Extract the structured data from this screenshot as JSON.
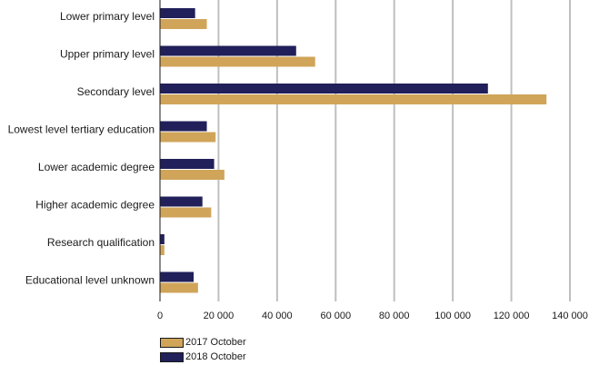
{
  "chart_data": {
    "type": "bar",
    "orientation": "horizontal",
    "categories": [
      "Lower primary level",
      "Upper primary level",
      "Secondary level",
      "Lowest level tertiary education",
      "Lower academic degree",
      "Higher academic degree",
      "Research qualification",
      "Educational level unknown"
    ],
    "series": [
      {
        "name": "2018 October",
        "color": "#21205a",
        "values": [
          12000,
          46500,
          112000,
          16000,
          18500,
          14500,
          1500,
          11500
        ]
      },
      {
        "name": "2017 October",
        "color": "#d0a55a",
        "values": [
          16000,
          53000,
          132000,
          19000,
          22000,
          17500,
          1500,
          13000
        ]
      }
    ],
    "xlim": [
      0,
      140000
    ],
    "ticks": [
      0,
      20000,
      40000,
      60000,
      80000,
      100000,
      120000,
      140000
    ],
    "tick_labels": [
      "0",
      "20 000",
      "40 000",
      "60 000",
      "80 000",
      "100 000",
      "120 000",
      "140 000"
    ],
    "grid": "vertical",
    "legend": [
      {
        "name": "2017 October",
        "color": "#d0a55a"
      },
      {
        "name": "2018 October",
        "color": "#21205a"
      }
    ],
    "legend_position": "bottom-left"
  }
}
